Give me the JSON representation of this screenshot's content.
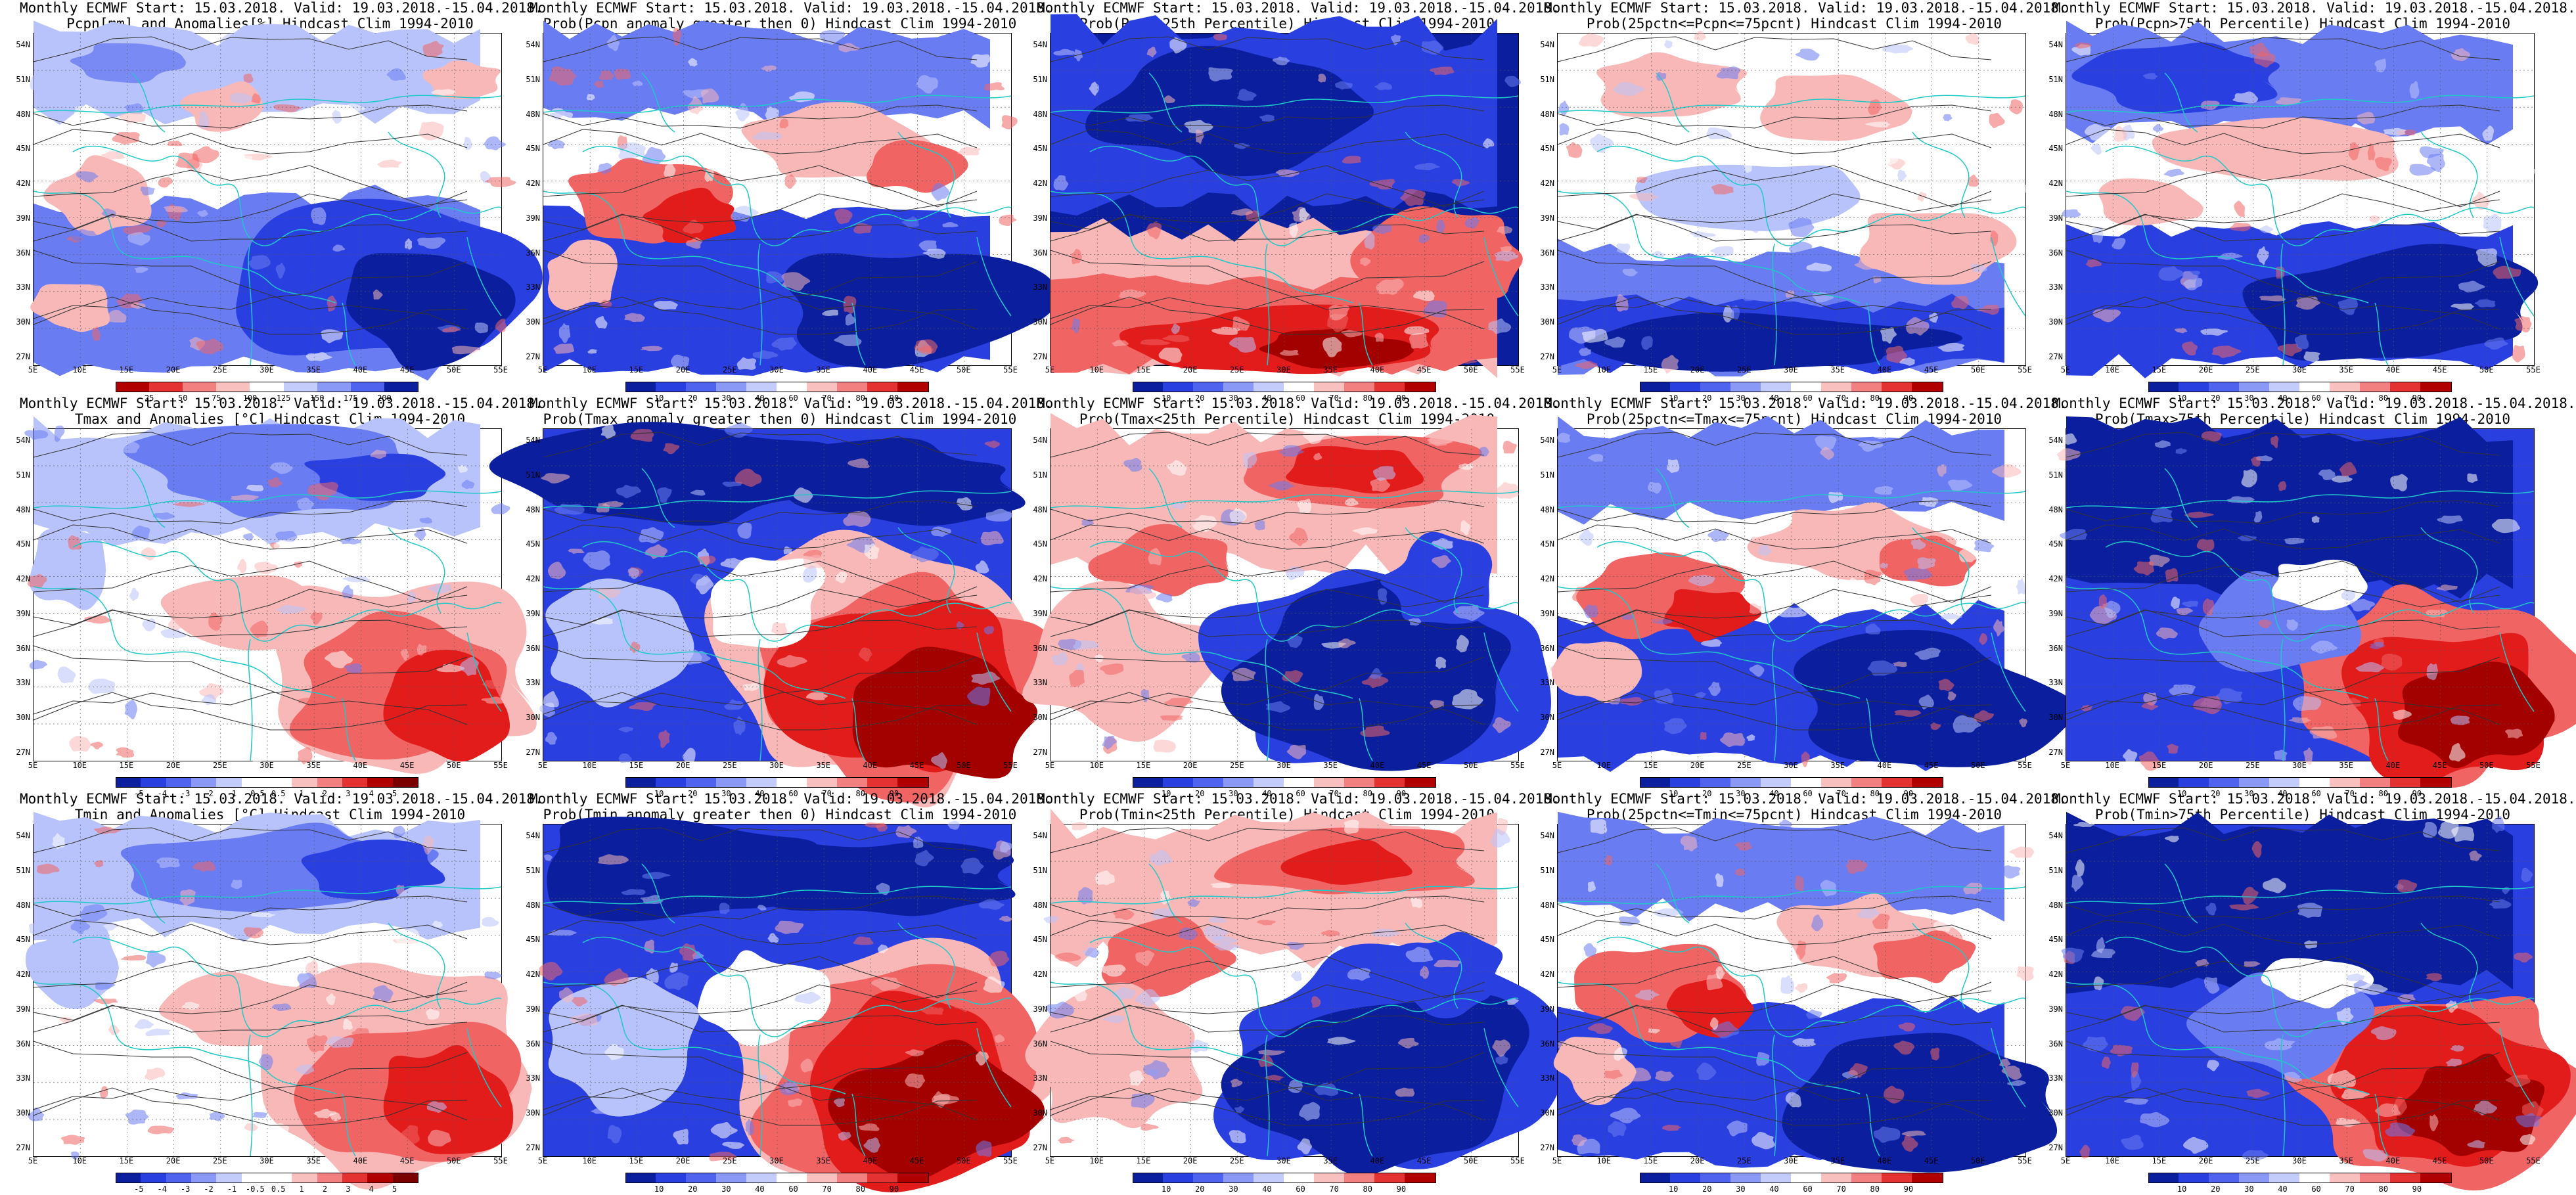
{
  "figure": {
    "panels": [
      {
        "id": "pcpn-anom",
        "title_line1": "Monthly ECMWF Start: 15.03.2018. Valid: 19.03.2018.-15.04.2018.",
        "title_line2": "Pcpn[mm] and Anomalies[%] Hindcast Clim 1994-2010",
        "colorbar_ticks": [
          "25",
          "50",
          "75",
          "100",
          "125",
          "150",
          "175",
          "200"
        ],
        "scheme": "precip-anom"
      },
      {
        "id": "pcpn-prob-pos",
        "title_line1": "Monthly ECMWF Start: 15.03.2018. Valid: 19.03.2018.-15.04.2018.",
        "title_line2": "Prob(Pcpn anomaly greater then 0) Hindcast Clim 1994-2010",
        "colorbar_ticks": [
          "10",
          "20",
          "30",
          "40",
          "60",
          "70",
          "80",
          "90"
        ],
        "scheme": "prob-mixed"
      },
      {
        "id": "pcpn-lt25",
        "title_line1": "Monthly ECMWF Start: 15.03.2018. Valid: 19.03.2018.-15.04.2018.",
        "title_line2": "Prob(Pcpn<25th Percentile) Hindcast Clim 1994-2010",
        "colorbar_ticks": [
          "10",
          "20",
          "30",
          "40",
          "60",
          "70",
          "80",
          "90"
        ],
        "scheme": "prob-blue-north"
      },
      {
        "id": "pcpn-mid",
        "title_line1": "Monthly ECMWF Start: 15.03.2018. Valid: 19.03.2018.-15.04.2018.",
        "title_line2": "Prob(25pctn<=Pcpn<=75pcnt) Hindcast Clim 1994-2010",
        "colorbar_ticks": [
          "10",
          "20",
          "30",
          "40",
          "60",
          "70",
          "80",
          "90"
        ],
        "scheme": "prob-pale-south-blue"
      },
      {
        "id": "pcpn-gt75",
        "title_line1": "Monthly ECMWF Start: 15.03.2018. Valid: 19.03.2018.-15.04.2018.",
        "title_line2": "Prob(Pcpn>75th Percentile) Hindcast Clim 1994-2010",
        "colorbar_ticks": [
          "10",
          "20",
          "30",
          "40",
          "60",
          "70",
          "80",
          "90"
        ],
        "scheme": "prob-blue-south"
      },
      {
        "id": "tmax-anom",
        "title_line1": "Monthly ECMWF Start: 15.03.2018. Valid: 19.03.2018.-15.04.2018.",
        "title_line2": "Tmax and Anomalies [°C] Hindcast Clim 1994-2010",
        "colorbar_ticks": [
          "-5",
          "-4",
          "-3",
          "-2",
          "-1",
          "-0.5",
          "0.5",
          "1",
          "2",
          "3",
          "4",
          "5"
        ],
        "scheme": "temp-anom"
      },
      {
        "id": "tmax-prob-pos",
        "title_line1": "Monthly ECMWF Start: 15.03.2018. Valid: 19.03.2018.-15.04.2018.",
        "title_line2": "Prob(Tmax anomaly greater then 0) Hindcast Clim 1994-2010",
        "colorbar_ticks": [
          "10",
          "20",
          "30",
          "40",
          "60",
          "70",
          "80",
          "90"
        ],
        "scheme": "prob-red-southeast"
      },
      {
        "id": "tmax-lt25",
        "title_line1": "Monthly ECMWF Start: 15.03.2018. Valid: 19.03.2018.-15.04.2018.",
        "title_line2": "Prob(Tmax<25th Percentile) Hindcast Clim 1994-2010",
        "colorbar_ticks": [
          "10",
          "20",
          "30",
          "40",
          "60",
          "70",
          "80",
          "90"
        ],
        "scheme": "prob-red-north-blue-south"
      },
      {
        "id": "tmax-mid",
        "title_line1": "Monthly ECMWF Start: 15.03.2018. Valid: 19.03.2018.-15.04.2018.",
        "title_line2": "Prob(25pctn<=Tmax<=75pcnt) Hindcast Clim 1994-2010",
        "colorbar_ticks": [
          "10",
          "20",
          "30",
          "40",
          "60",
          "70",
          "80",
          "90"
        ],
        "scheme": "prob-mixed"
      },
      {
        "id": "tmax-gt75",
        "title_line1": "Monthly ECMWF Start: 15.03.2018. Valid: 19.03.2018.-15.04.2018.",
        "title_line2": "Prob(Tmax>75th Percentile) Hindcast Clim 1994-2010",
        "colorbar_ticks": [
          "10",
          "20",
          "30",
          "40",
          "60",
          "70",
          "80",
          "90"
        ],
        "scheme": "prob-red-southeast-blue"
      },
      {
        "id": "tmin-anom",
        "title_line1": "Monthly ECMWF Start: 15.03.2018. Valid: 19.03.2018.-15.04.2018.",
        "title_line2": "Tmin and Anomalies [°C] Hindcast Clim 1994-2010",
        "colorbar_ticks": [
          "-5",
          "-4",
          "-3",
          "-2",
          "-1",
          "-0.5",
          "0.5",
          "1",
          "2",
          "3",
          "4",
          "5"
        ],
        "scheme": "temp-anom"
      },
      {
        "id": "tmin-prob-pos",
        "title_line1": "Monthly ECMWF Start: 15.03.2018. Valid: 19.03.2018.-15.04.2018.",
        "title_line2": "Prob(Tmin anomaly greater then 0) Hindcast Clim 1994-2010",
        "colorbar_ticks": [
          "10",
          "20",
          "30",
          "40",
          "60",
          "70",
          "80",
          "90"
        ],
        "scheme": "prob-red-southeast"
      },
      {
        "id": "tmin-lt25",
        "title_line1": "Monthly ECMWF Start: 15.03.2018. Valid: 19.03.2018.-15.04.2018.",
        "title_line2": "Prob(Tmin<25th Percentile) Hindcast Clim 1994-2010",
        "colorbar_ticks": [
          "10",
          "20",
          "30",
          "40",
          "60",
          "70",
          "80",
          "90"
        ],
        "scheme": "prob-red-north-blue-south"
      },
      {
        "id": "tmin-mid",
        "title_line1": "Monthly ECMWF Start: 15.03.2018. Valid: 19.03.2018.-15.04.2018.",
        "title_line2": "Prob(25pctn<=Tmin<=75pcnt) Hindcast Clim 1994-2010",
        "colorbar_ticks": [
          "10",
          "20",
          "30",
          "40",
          "60",
          "70",
          "80",
          "90"
        ],
        "scheme": "prob-mixed"
      },
      {
        "id": "tmin-gt75",
        "title_line1": "Monthly ECMWF Start: 15.03.2018. Valid: 19.03.2018.-15.04.2018.",
        "title_line2": "Prob(Tmin>75th Percentile) Hindcast Clim 1994-2010",
        "colorbar_ticks": [
          "10",
          "20",
          "30",
          "40",
          "60",
          "70",
          "80",
          "90"
        ],
        "scheme": "prob-red-southeast-blue"
      }
    ],
    "lat_labels": [
      "54N",
      "51N",
      "48N",
      "45N",
      "42N",
      "39N",
      "36N",
      "33N",
      "30N",
      "27N"
    ],
    "lon_labels": [
      "5E",
      "10E",
      "15E",
      "20E",
      "25E",
      "30E",
      "35E",
      "40E",
      "45E",
      "50E",
      "55E"
    ],
    "colors": {
      "deep_blue": "#0b1f9e",
      "blue": "#2a3fe0",
      "mid_blue": "#6a7cf2",
      "light_blue": "#b9c3fb",
      "white": "#ffffff",
      "light_red": "#f9b8b8",
      "mid_red": "#f06464",
      "red": "#e21b1b",
      "deep_red": "#a30000",
      "coast": "#20c8c8",
      "contour": "#333333"
    },
    "prob_colorbar_colors": [
      "#0b1f9e",
      "#2a3fe0",
      "#4f63ee",
      "#8a99f5",
      "#c3ccfb",
      "#ffffff",
      "#f9c0c0",
      "#f28080",
      "#e43232",
      "#b00000"
    ],
    "temp_colorbar_colors": [
      "#0b1f9e",
      "#2a3fe0",
      "#4f63ee",
      "#8a99f5",
      "#c3ccfb",
      "#ffffff",
      "#ffffff",
      "#f9c0c0",
      "#f28080",
      "#e43232",
      "#b00000",
      "#7a0000"
    ],
    "precip_colorbar_colors": [
      "#b00000",
      "#e43232",
      "#f28080",
      "#f9c0c0",
      "#ffffff",
      "#c3ccfb",
      "#8a99f5",
      "#4f63ee",
      "#0b1f9e"
    ]
  }
}
